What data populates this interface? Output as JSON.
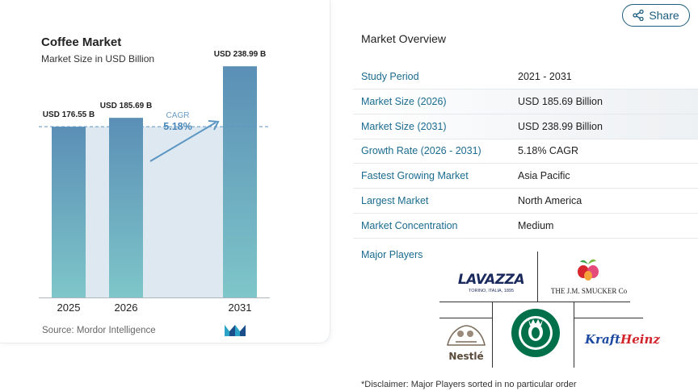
{
  "share": {
    "label": "Share",
    "icon": "share-icon"
  },
  "chart_card": {
    "title": "Coffee Market",
    "subtitle": "Market Size in USD Billion",
    "source": "Source:  Mordor Intelligence",
    "logo": "mordor-intelligence-logo"
  },
  "chart_data": {
    "type": "bar",
    "categories": [
      "2025",
      "2026",
      "2031"
    ],
    "values": [
      176.55,
      185.69,
      238.99
    ],
    "value_labels": [
      "USD 176.55 B",
      "USD 185.69 B",
      "USD 238.99 B"
    ],
    "cagr_label": "CAGR",
    "cagr_value": "5.18%",
    "reference_line": 176.55,
    "ylim": [
      0,
      250
    ],
    "colors": {
      "bar_top": "#5b8fb6",
      "bar_bottom": "#7ec6c9",
      "band": "#dde8f1",
      "accent": "#5b95c2"
    }
  },
  "overview": {
    "title": "Market Overview",
    "rows": [
      {
        "key": "Study Period",
        "value": "2021 - 2031"
      },
      {
        "key": "Market Size (2026)",
        "value": "USD 185.69 Billion"
      },
      {
        "key": "Market Size (2031)",
        "value": "USD 238.99 Billion"
      },
      {
        "key": "Growth Rate (2026 - 2031)",
        "value": "5.18% CAGR"
      },
      {
        "key": "Fastest Growing Market",
        "value": "Asia Pacific"
      },
      {
        "key": "Largest Market",
        "value": "North America"
      },
      {
        "key": "Market Concentration",
        "value": "Medium"
      }
    ],
    "major_players_label": "Major Players",
    "players": {
      "lavazza": "LAVAZZA",
      "lavazza_sub": "TORINO, ITALIA, 1895",
      "smucker": "THE J.M. SMUCKER Co",
      "nestle": "Nestlé",
      "starbucks": "starbucks-logo",
      "kraft": "Kraft",
      "heinz": "Heinz"
    },
    "disclaimer": "*Disclaimer: Major Players sorted in no particular order"
  }
}
